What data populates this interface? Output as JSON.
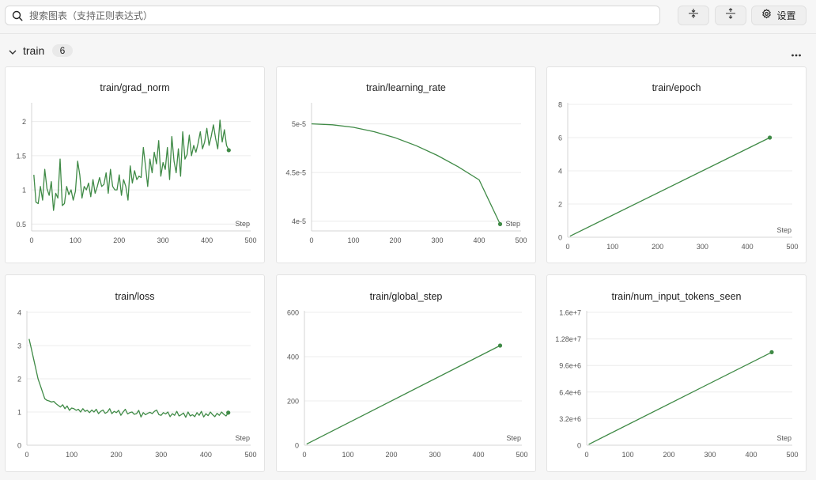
{
  "search": {
    "placeholder": "搜索图表（支持正则表达式）"
  },
  "toolbar": {
    "settings_label": "设置"
  },
  "section": {
    "title": "train",
    "count": "6"
  },
  "colors": {
    "line": "#3f8a46",
    "grid": "#ececec",
    "axis": "#d4d4d4",
    "tick": "#555555"
  },
  "chart_data": [
    {
      "type": "line",
      "title": "train/grad_norm",
      "xlabel": "Step",
      "ylabel": "",
      "xlim": [
        0,
        500
      ],
      "ylim": [
        0.4,
        2.25
      ],
      "xticks": [
        0,
        100,
        200,
        300,
        400,
        500
      ],
      "xtick_labels": [
        "0",
        "100",
        "200",
        "300",
        "400",
        "500"
      ],
      "yticks": [
        0.5,
        1,
        1.5,
        2
      ],
      "ytick_labels": [
        "0.5",
        "1",
        "1.5",
        "2"
      ],
      "grid": true,
      "series": [
        {
          "x": [
            5,
            10,
            15,
            20,
            25,
            30,
            35,
            40,
            45,
            50,
            55,
            60,
            65,
            70,
            75,
            80,
            85,
            90,
            95,
            100,
            105,
            110,
            115,
            120,
            125,
            130,
            135,
            140,
            145,
            150,
            155,
            160,
            165,
            170,
            175,
            180,
            185,
            190,
            195,
            200,
            205,
            210,
            215,
            220,
            225,
            230,
            235,
            240,
            245,
            250,
            255,
            260,
            265,
            270,
            275,
            280,
            285,
            290,
            295,
            300,
            305,
            310,
            315,
            320,
            325,
            330,
            335,
            340,
            345,
            350,
            355,
            360,
            365,
            370,
            375,
            380,
            385,
            390,
            395,
            400,
            405,
            410,
            415,
            420,
            425,
            430,
            435,
            440,
            445,
            450
          ],
          "y": [
            1.22,
            0.82,
            0.8,
            1.05,
            0.85,
            1.3,
            1.02,
            0.92,
            1.12,
            0.7,
            0.95,
            0.88,
            1.45,
            0.77,
            0.8,
            1.05,
            0.93,
            1.0,
            0.85,
            0.98,
            1.42,
            1.22,
            0.88,
            1.05,
            1.0,
            1.1,
            0.9,
            1.15,
            0.95,
            1.05,
            1.18,
            1.05,
            1.08,
            1.25,
            0.95,
            1.3,
            1.05,
            1.0,
            1.0,
            1.22,
            0.92,
            1.15,
            1.05,
            0.85,
            1.35,
            1.1,
            1.28,
            1.15,
            1.2,
            1.18,
            1.62,
            1.35,
            1.05,
            1.45,
            1.25,
            1.55,
            1.38,
            1.72,
            1.2,
            1.4,
            1.3,
            1.62,
            1.15,
            1.78,
            1.42,
            1.25,
            1.6,
            1.2,
            1.85,
            1.45,
            1.52,
            1.8,
            1.5,
            1.65,
            1.55,
            1.68,
            1.85,
            1.6,
            1.7,
            1.9,
            1.65,
            1.78,
            1.95,
            1.75,
            1.6,
            2.02,
            1.7,
            1.88,
            1.65,
            1.58
          ]
        }
      ]
    },
    {
      "type": "line",
      "title": "train/learning_rate",
      "xlabel": "Step",
      "ylabel": "",
      "xlim": [
        0,
        500
      ],
      "ylim": [
        3.9e-05,
        5.2e-05
      ],
      "xticks": [
        0,
        100,
        200,
        300,
        400,
        500
      ],
      "xtick_labels": [
        "0",
        "100",
        "200",
        "300",
        "400",
        "500"
      ],
      "yticks": [
        4e-05,
        4.5e-05,
        5e-05
      ],
      "ytick_labels": [
        "4e-5",
        "4.5e-5",
        "5e-5"
      ],
      "grid": true,
      "series": [
        {
          "x": [
            0,
            50,
            100,
            150,
            200,
            250,
            300,
            350,
            400,
            450
          ],
          "y": [
            5e-05,
            4.99e-05,
            4.964e-05,
            4.919e-05,
            4.856e-05,
            4.775e-05,
            4.676e-05,
            4.559e-05,
            4.424e-05,
            3.97e-05
          ]
        }
      ]
    },
    {
      "type": "line",
      "title": "train/epoch",
      "xlabel": "Step",
      "ylabel": "",
      "xlim": [
        0,
        500
      ],
      "ylim": [
        0,
        8
      ],
      "xticks": [
        0,
        100,
        200,
        300,
        400,
        500
      ],
      "xtick_labels": [
        "0",
        "100",
        "200",
        "300",
        "400",
        "500"
      ],
      "yticks": [
        0,
        2,
        4,
        6,
        8
      ],
      "ytick_labels": [
        "0",
        "2",
        "4",
        "6",
        "8"
      ],
      "grid": true,
      "series": [
        {
          "x": [
            5,
            450
          ],
          "y": [
            0.06,
            6.0
          ]
        }
      ]
    },
    {
      "type": "line",
      "title": "train/loss",
      "xlabel": "Step",
      "ylabel": "",
      "xlim": [
        0,
        500
      ],
      "ylim": [
        0,
        4
      ],
      "xticks": [
        0,
        100,
        200,
        300,
        400,
        500
      ],
      "xtick_labels": [
        "0",
        "100",
        "200",
        "300",
        "400",
        "500"
      ],
      "yticks": [
        0,
        1,
        2,
        3,
        4
      ],
      "ytick_labels": [
        "0",
        "1",
        "2",
        "3",
        "4"
      ],
      "grid": true,
      "series": [
        {
          "x": [
            5,
            10,
            15,
            20,
            25,
            30,
            35,
            40,
            45,
            50,
            55,
            60,
            65,
            70,
            75,
            80,
            85,
            90,
            95,
            100,
            105,
            110,
            115,
            120,
            125,
            130,
            135,
            140,
            145,
            150,
            155,
            160,
            165,
            170,
            175,
            180,
            185,
            190,
            195,
            200,
            205,
            210,
            215,
            220,
            225,
            230,
            235,
            240,
            245,
            250,
            255,
            260,
            265,
            270,
            275,
            280,
            285,
            290,
            295,
            300,
            305,
            310,
            315,
            320,
            325,
            330,
            335,
            340,
            345,
            350,
            355,
            360,
            365,
            370,
            375,
            380,
            385,
            390,
            395,
            400,
            405,
            410,
            415,
            420,
            425,
            430,
            435,
            440,
            445,
            450
          ],
          "y": [
            3.2,
            2.9,
            2.6,
            2.3,
            2.0,
            1.8,
            1.6,
            1.4,
            1.35,
            1.33,
            1.3,
            1.32,
            1.25,
            1.2,
            1.15,
            1.22,
            1.1,
            1.18,
            1.05,
            1.12,
            1.1,
            1.05,
            1.08,
            1.0,
            1.1,
            1.02,
            1.05,
            0.98,
            1.06,
            1.0,
            1.08,
            0.95,
            1.02,
            1.06,
            0.96,
            1.0,
            1.1,
            0.95,
            1.02,
            0.98,
            1.05,
            0.9,
            1.0,
            1.08,
            0.94,
            0.98,
            1.0,
            0.93,
            0.95,
            1.05,
            0.85,
            0.98,
            0.92,
            0.96,
            0.99,
            0.95,
            1.02,
            1.06,
            0.92,
            0.9,
            0.98,
            0.94,
            1.0,
            0.86,
            0.95,
            0.9,
            1.02,
            0.88,
            0.92,
            0.97,
            0.84,
            1.0,
            0.88,
            0.92,
            0.86,
            0.98,
            0.9,
            1.02,
            0.85,
            0.95,
            0.89,
            1.0,
            0.92,
            0.86,
            0.96,
            0.9,
            1.0,
            0.93,
            0.88,
            0.98
          ]
        }
      ]
    },
    {
      "type": "line",
      "title": "train/global_step",
      "xlabel": "Step",
      "ylabel": "",
      "xlim": [
        0,
        500
      ],
      "ylim": [
        0,
        600
      ],
      "xticks": [
        0,
        100,
        200,
        300,
        400,
        500
      ],
      "xtick_labels": [
        "0",
        "100",
        "200",
        "300",
        "400",
        "500"
      ],
      "yticks": [
        0,
        200,
        400,
        600
      ],
      "ytick_labels": [
        "0",
        "200",
        "400",
        "600"
      ],
      "grid": true,
      "series": [
        {
          "x": [
            5,
            450
          ],
          "y": [
            5,
            450
          ]
        }
      ]
    },
    {
      "type": "line",
      "title": "train/num_input_tokens_seen",
      "xlabel": "Step",
      "ylabel": "",
      "xlim": [
        0,
        500
      ],
      "ylim": [
        0,
        16000000
      ],
      "xticks": [
        0,
        100,
        200,
        300,
        400,
        500
      ],
      "xtick_labels": [
        "0",
        "100",
        "200",
        "300",
        "400",
        "500"
      ],
      "yticks": [
        0,
        3200000,
        6400000,
        9600000,
        12800000,
        16000000
      ],
      "ytick_labels": [
        "0",
        "3.2e+6",
        "6.4e+6",
        "9.6e+6",
        "1.28e+7",
        "1.6e+7"
      ],
      "grid": true,
      "series": [
        {
          "x": [
            5,
            450
          ],
          "y": [
            100000,
            11200000
          ]
        }
      ]
    }
  ]
}
